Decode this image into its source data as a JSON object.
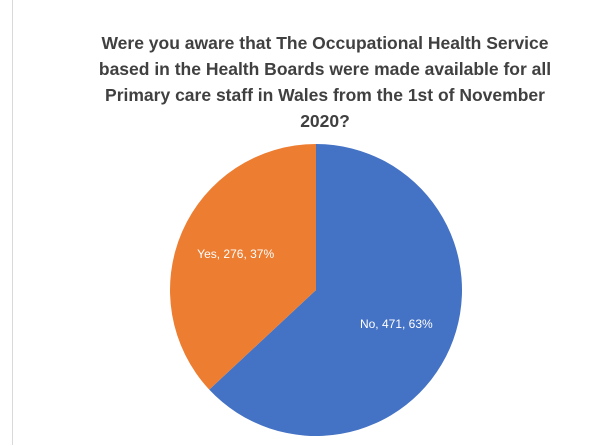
{
  "chart_data": {
    "type": "pie",
    "title": "Were you aware that The Occupational Health Service based in the Health Boards were made available for all Primary care staff in Wales from the 1st of November 2020?",
    "values": [
      471,
      276
    ],
    "value_labels": [
      "No, 471, 63%",
      "Yes, 276, 37%"
    ],
    "colors": [
      "#4472c4",
      "#ed7d31"
    ]
  }
}
